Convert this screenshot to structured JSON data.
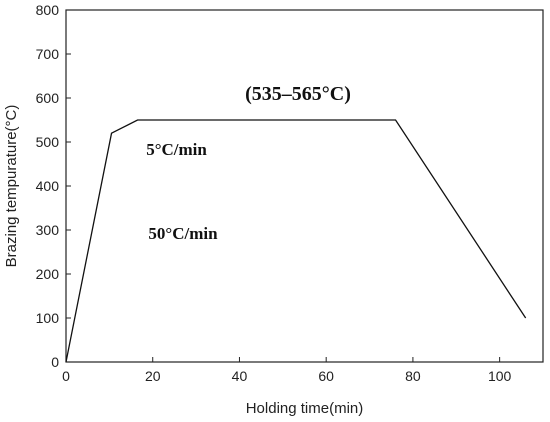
{
  "chart_data": {
    "type": "line",
    "title": "",
    "xlabel": "Holding time(min)",
    "ylabel": "Brazing tempurature(°C)",
    "xlim": [
      0,
      110
    ],
    "ylim": [
      0,
      800
    ],
    "x_ticks": [
      0,
      20,
      40,
      60,
      80,
      100
    ],
    "y_ticks": [
      0,
      100,
      200,
      300,
      400,
      500,
      600,
      700,
      800
    ],
    "grid": false,
    "legend": "none",
    "line_color": "#111111",
    "series": [
      {
        "x": [
          0,
          10.5,
          16.5,
          76,
          106
        ],
        "y": [
          0,
          520,
          550,
          550,
          100
        ]
      }
    ],
    "annotations": [
      {
        "text": "(535–565°C)",
        "x": 53.5,
        "y": 595,
        "size": 20
      },
      {
        "text": "5°C/min",
        "x": 18.5,
        "y": 470,
        "size": 17
      },
      {
        "text": "50°C/min",
        "x": 19,
        "y": 280,
        "size": 17
      }
    ]
  }
}
